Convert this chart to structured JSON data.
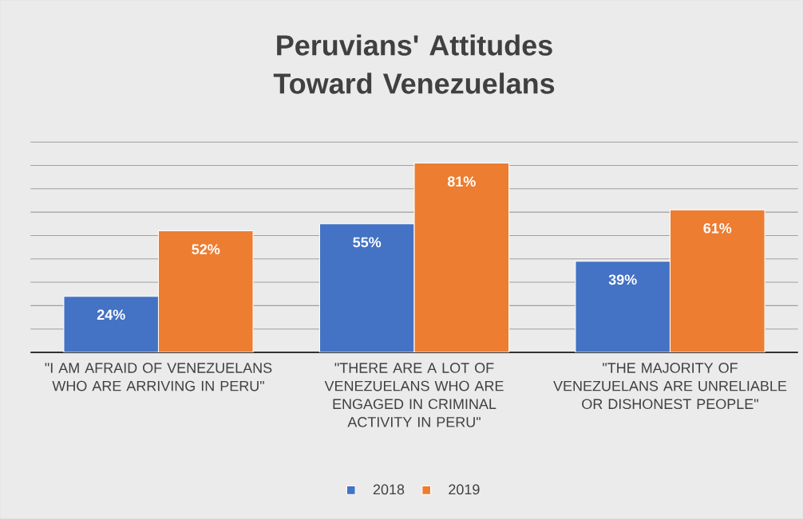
{
  "chart_data": {
    "type": "bar",
    "title": "Peruvians' Attitudes Toward Venezuelans",
    "categories": [
      "\"I AM AFRAID OF VENEZUELANS WHO ARE ARRIVING IN PERU\"",
      "\"THERE ARE A LOT OF VENEZUELANS WHO ARE ENGAGED IN CRIMINAL ACTIVITY IN PERU\"",
      "\"THE MAJORITY OF VENEZUELANS ARE UNRELIABLE OR DISHONEST PEOPLE\""
    ],
    "series": [
      {
        "name": "2018",
        "color": "#4472c4",
        "values": [
          24,
          55,
          39
        ],
        "value_labels": [
          "24%",
          "55%",
          "39%"
        ]
      },
      {
        "name": "2019",
        "color": "#ed7d31",
        "values": [
          52,
          81,
          61
        ],
        "value_labels": [
          "52%",
          "81%",
          "61%"
        ]
      }
    ],
    "ylim": [
      0,
      90
    ],
    "yticks": [
      {
        "value": 0,
        "label": null
      },
      {
        "value": 10,
        "label": null
      },
      {
        "value": 20,
        "label": null
      },
      {
        "value": 30,
        "label": null
      },
      {
        "value": 40,
        "label": null
      },
      {
        "value": 50,
        "label": null
      },
      {
        "value": 60,
        "label": null
      },
      {
        "value": 70,
        "label": null
      },
      {
        "value": 80,
        "label": null
      },
      {
        "value": 90,
        "label": null
      }
    ],
    "grid": "y",
    "legend": "bottom",
    "tick_labels": "x"
  }
}
